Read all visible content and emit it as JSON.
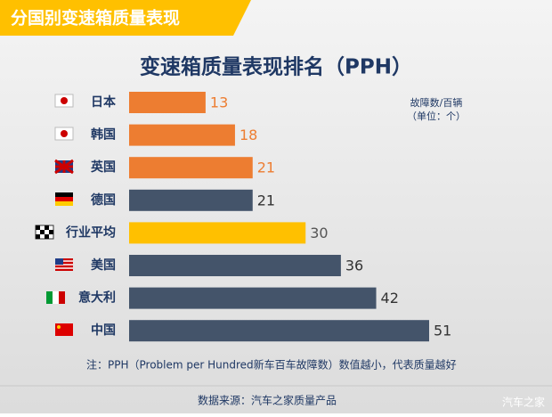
{
  "chart_data": {
    "type": "bar",
    "orientation": "horizontal",
    "banner": "分国别变速箱质量表现",
    "title": "变速箱质量表现排名（PPH）",
    "unit_lines": [
      "故障数/百辆",
      "（单位：个）"
    ],
    "categories": [
      "日本",
      "韩国",
      "英国",
      "德国",
      "行业平均",
      "美国",
      "意大利",
      "中国"
    ],
    "values": [
      13,
      18,
      21,
      21,
      30,
      36,
      42,
      51
    ],
    "colors": [
      "#ed7d31",
      "#ed7d31",
      "#ed7d31",
      "#44546a",
      "#ffc000",
      "#44546a",
      "#44546a",
      "#44546a"
    ],
    "value_label_colors": [
      "#ed7d31",
      "#ed7d31",
      "#ed7d31",
      "#333333",
      "#555555",
      "#333333",
      "#333333",
      "#333333"
    ],
    "xlim": [
      0,
      51
    ],
    "note": "注：PPH（Problem per Hundred新车百车故障数）数值越小，代表质量越好",
    "source": "数据来源：汽车之家质量产品",
    "watermark": "汽车之家"
  }
}
